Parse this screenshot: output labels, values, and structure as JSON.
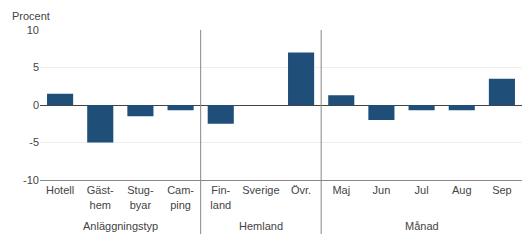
{
  "chart_data": {
    "type": "bar",
    "ylabel": "Procent",
    "categories": [
      "Hotell",
      "Gäst-\nhem",
      "Stug-\nbyar",
      "Cam-\nping",
      "Fin-\nland",
      "Sverige",
      "Övr.",
      "Maj",
      "Jun",
      "Jul",
      "Aug",
      "Sep"
    ],
    "values": [
      1.5,
      -5.0,
      -1.5,
      -0.7,
      -2.5,
      0.0,
      7.0,
      1.3,
      -2.0,
      -0.7,
      -0.7,
      3.5
    ],
    "color": "#1f4e79",
    "ylim": [
      -10,
      10
    ],
    "yticks": [
      -10,
      -5,
      0,
      5,
      10
    ],
    "grid": true,
    "groups": [
      {
        "label": "Anläggningstyp",
        "categories": [
          "Hotell",
          "Gäst-\nhem",
          "Stug-\nbyar",
          "Cam-\nping"
        ]
      },
      {
        "label": "Hemland",
        "categories": [
          "Fin-\nland",
          "Sverige",
          "Övr."
        ]
      },
      {
        "label": "Månad",
        "categories": [
          "Maj",
          "Jun",
          "Jul",
          "Aug",
          "Sep"
        ]
      }
    ]
  }
}
